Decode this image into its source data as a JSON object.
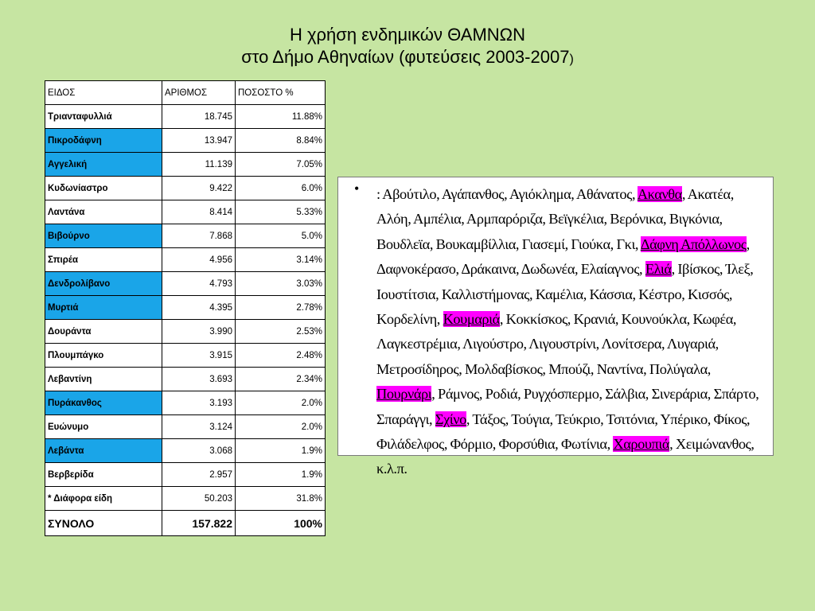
{
  "title": {
    "line1": "Η χρήση ενδημικών ΘΑΜΝΩΝ",
    "line2": "στο Δήμο Αθηναίων (φυτεύσεις 2003-2007",
    "line2_paren": ")"
  },
  "table": {
    "headers": [
      "ΕΙΔΟΣ",
      "ΑΡΙΘΜΟΣ",
      "ΠΟΣΟΣΤΟ %"
    ],
    "highlight_color": "#1aa5e8",
    "rows": [
      {
        "name": "Τριανταφυλλιά",
        "count": "18.745",
        "percent": "11.88%",
        "highlight": false
      },
      {
        "name": "Πικροδάφνη",
        "count": "13.947",
        "percent": "8.84%",
        "highlight": true
      },
      {
        "name": "Αγγελική",
        "count": "11.139",
        "percent": "7.05%",
        "highlight": true
      },
      {
        "name": "Κυδωνίαστρο",
        "count": "9.422",
        "percent": "6.0%",
        "highlight": false
      },
      {
        "name": "Λαντάνα",
        "count": "8.414",
        "percent": "5.33%",
        "highlight": false
      },
      {
        "name": "Βιβούρνο",
        "count": "7.868",
        "percent": "5.0%",
        "highlight": true
      },
      {
        "name": "Σπιρέα",
        "count": "4.956",
        "percent": "3.14%",
        "highlight": false
      },
      {
        "name": "Δενδρολίβανο",
        "count": "4.793",
        "percent": "3.03%",
        "highlight": true
      },
      {
        "name": "Μυρτιά",
        "count": "4.395",
        "percent": "2.78%",
        "highlight": true
      },
      {
        "name": "Δουράντα",
        "count": "3.990",
        "percent": "2.53%",
        "highlight": false
      },
      {
        "name": "Πλουμπάγκο",
        "count": "3.915",
        "percent": "2.48%",
        "highlight": false
      },
      {
        "name": "Λεβαντίνη",
        "count": "3.693",
        "percent": "2.34%",
        "highlight": false
      },
      {
        "name": "Πυράκανθος",
        "count": "3.193",
        "percent": "2.0%",
        "highlight": true
      },
      {
        "name": "Ευώνυμο",
        "count": "3.124",
        "percent": "2.0%",
        "highlight": false
      },
      {
        "name": "Λεβάντα",
        "count": "3.068",
        "percent": "1.9%",
        "highlight": true
      },
      {
        "name": "Βερβερίδα",
        "count": "2.957",
        "percent": "1.9%",
        "highlight": false
      },
      {
        "name": "* Διάφορα είδη",
        "count": "50.203",
        "percent": "31.8%",
        "highlight": false
      }
    ],
    "total": {
      "name": "ΣΥΝΟΛΟ",
      "count": "157.822",
      "percent": "100%"
    }
  },
  "species_list": {
    "bullet": "•",
    "highlight_color": "#ff00ff",
    "segments": [
      {
        "text": ": Αβούτιλο, Αγάπανθος, Αγιόκλημα, Αθάνατος, ",
        "hl": false
      },
      {
        "text": "Ακανθα",
        "hl": true
      },
      {
        "text": ", Ακατέα, Αλόη, Αμπέλια, Αρμπαρόριζα, Βεϊγκέλια, Βερόνικα, Βιγκόνια, Βουδλεϊα, Βουκαμβίλλια, Γιασεμί, Γιούκα, Γκι, ",
        "hl": false
      },
      {
        "text": "Δάφνη Απόλλωνος",
        "hl": true
      },
      {
        "text": ", Δαφνοκέρασο, Δράκαινα, Δωδωνέα, Ελαίαγνος, ",
        "hl": false
      },
      {
        "text": "Ελιά",
        "hl": true
      },
      {
        "text": ", Ιβίσκος, Ίλεξ, Ιουστίτσια, Καλλιστήμονας, Καμέλια, Κάσσια, Κέστρο, Κισσός, Κορδελίνη, ",
        "hl": false
      },
      {
        "text": "Κουμαριά",
        "hl": true
      },
      {
        "text": ", Κοκκίσκος, Κρανιά, Κουνούκλα, Κωφέα, Λαγκεστρέμια, Λιγούστρο, Λιγουστρίνι, Λονίτσερα, Λυγαριά, Μετροσίδηρος, Μολδαβίσκος, Μπούζι, Ναντίνα, Πολύγαλα, ",
        "hl": false
      },
      {
        "text": "Πουρνάρι",
        "hl": true
      },
      {
        "text": ", Ράμνος, Ροδιά, Ρυγχόσπερμο, Σάλβια, Σινεράρια, Σπάρτο, Σπαράγγι, ",
        "hl": false
      },
      {
        "text": "Σχίνο",
        "hl": true
      },
      {
        "text": ", Τάξος, Τούγια, Τεύκριο, Τσιτόνια, Υπέρικο, Φίκος, Φιλάδελφος, Φόρμιο, Φορσύθια, Φωτίνια, ",
        "hl": false
      },
      {
        "text": "Χαρουπιά",
        "hl": true
      },
      {
        "text": ", Χειμώνανθος, κ.λ.π.",
        "hl": false
      }
    ]
  }
}
